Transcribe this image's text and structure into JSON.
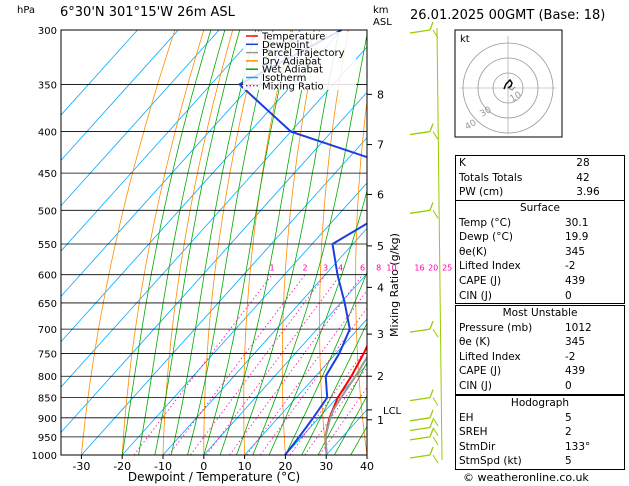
{
  "header": {
    "hpa_label": "hPa",
    "location": "6°30'N  301°15'W  26m  ASL",
    "km_label": "km",
    "asl_label": "ASL",
    "datetime": "26.01.2025  00GMT  (Base: 18)"
  },
  "colors": {
    "temperature": "#ff0000",
    "dewpoint": "#1a3fe0",
    "parcel": "#999999",
    "dry_adiabat": "#ff8c00",
    "wet_adiabat": "#00aa00",
    "isotherm": "#00aaff",
    "mixing_ratio": "#ff00aa",
    "wind": "#99cc00"
  },
  "chart_data": {
    "type": "line",
    "title": "",
    "xlabel": "Dewpoint / Temperature (°C)",
    "ylabel_left": "",
    "ylabel_right": "Mixing Ratio (g/kg)",
    "xlim": [
      -35,
      40
    ],
    "pressure_range": [
      300,
      1000
    ],
    "x_ticks": [
      -30,
      -20,
      -10,
      0,
      10,
      20,
      30,
      40
    ],
    "pressure_ticks": [
      300,
      350,
      400,
      450,
      500,
      550,
      600,
      650,
      700,
      750,
      800,
      850,
      900,
      950,
      1000
    ],
    "km_ticks": [
      {
        "label": "8",
        "p": 360
      },
      {
        "label": "7",
        "p": 415
      },
      {
        "label": "6",
        "p": 478
      },
      {
        "label": "5",
        "p": 553
      },
      {
        "label": "4",
        "p": 622
      },
      {
        "label": "3",
        "p": 710
      },
      {
        "label": "2",
        "p": 800
      },
      {
        "label": "1",
        "p": 905
      }
    ],
    "lcl": {
      "label": "LCL",
      "p": 880
    },
    "mixing_ratio_labels": [
      "1",
      "2",
      "3",
      "4",
      "6",
      "8",
      "10",
      "16",
      "20",
      "25"
    ],
    "legend": [
      "Temperature",
      "Dewpoint",
      "Parcel Trajectory",
      "Dry Adiabat",
      "Wet Adiabat",
      "Isotherm",
      "Mixing Ratio"
    ],
    "series": [
      {
        "name": "Temperature",
        "points": [
          [
            1000,
            30.1
          ],
          [
            950,
            25.8
          ],
          [
            900,
            22.6
          ],
          [
            850,
            20.2
          ],
          [
            800,
            18.8
          ],
          [
            750,
            16.8
          ],
          [
            700,
            14.2
          ],
          [
            650,
            11.6
          ],
          [
            600,
            8.6
          ],
          [
            550,
            5.0
          ],
          [
            500,
            1.2
          ],
          [
            450,
            -3.2
          ],
          [
            400,
            -8.5
          ],
          [
            350,
            -15.5
          ],
          [
            300,
            -25
          ]
        ]
      },
      {
        "name": "Dewpoint",
        "points": [
          [
            1000,
            19.9
          ],
          [
            950,
            19.4
          ],
          [
            900,
            18.6
          ],
          [
            850,
            17.6
          ],
          [
            800,
            12.5
          ],
          [
            750,
            10.8
          ],
          [
            700,
            8.0
          ],
          [
            650,
            1.0
          ],
          [
            600,
            -7.0
          ],
          [
            550,
            -15.0
          ],
          [
            500,
            -8.5
          ],
          [
            450,
            -10.5
          ],
          [
            400,
            -50
          ],
          [
            350,
            -73
          ],
          [
            300,
            -60
          ]
        ]
      },
      {
        "name": "Parcel Trajectory",
        "points": [
          [
            1000,
            30.1
          ],
          [
            950,
            25.8
          ],
          [
            900,
            22.8
          ],
          [
            880,
            21.8
          ],
          [
            850,
            21.0
          ],
          [
            800,
            19.8
          ],
          [
            750,
            18.2
          ],
          [
            700,
            16.4
          ],
          [
            650,
            14.5
          ],
          [
            600,
            12.0
          ],
          [
            550,
            9.0
          ],
          [
            500,
            5.6
          ],
          [
            450,
            1.4
          ],
          [
            400,
            -4.0
          ],
          [
            350,
            -11.5
          ]
        ]
      }
    ]
  },
  "indices": {
    "rows": [
      {
        "label": "K",
        "value": "28"
      },
      {
        "label": "Totals Totals",
        "value": "42"
      },
      {
        "label": "PW (cm)",
        "value": "3.96"
      }
    ]
  },
  "surface": {
    "title": "Surface",
    "rows": [
      {
        "label": "Temp (°C)",
        "value": "30.1"
      },
      {
        "label": "Dewp (°C)",
        "value": "19.9"
      },
      {
        "label": "θe(K)",
        "value": "345"
      },
      {
        "label": "Lifted Index",
        "value": "-2"
      },
      {
        "label": "CAPE (J)",
        "value": "439"
      },
      {
        "label": "CIN (J)",
        "value": "0"
      }
    ]
  },
  "most_unstable": {
    "title": "Most Unstable",
    "rows": [
      {
        "label": "Pressure (mb)",
        "value": "1012"
      },
      {
        "label": "θe (K)",
        "value": "345"
      },
      {
        "label": "Lifted Index",
        "value": "-2"
      },
      {
        "label": "CAPE (J)",
        "value": "439"
      },
      {
        "label": "CIN (J)",
        "value": "0"
      }
    ]
  },
  "hodograph": {
    "title": "Hodograph",
    "kt_label": "kt",
    "ring_labels": [
      "10",
      "30",
      "40"
    ],
    "rows": [
      {
        "label": "EH",
        "value": "5"
      },
      {
        "label": "SREH",
        "value": "2"
      },
      {
        "label": "StmDir",
        "value": "133°"
      },
      {
        "label": "StmSpd (kt)",
        "value": "5"
      }
    ]
  },
  "footer": "© weatheronline.co.uk"
}
